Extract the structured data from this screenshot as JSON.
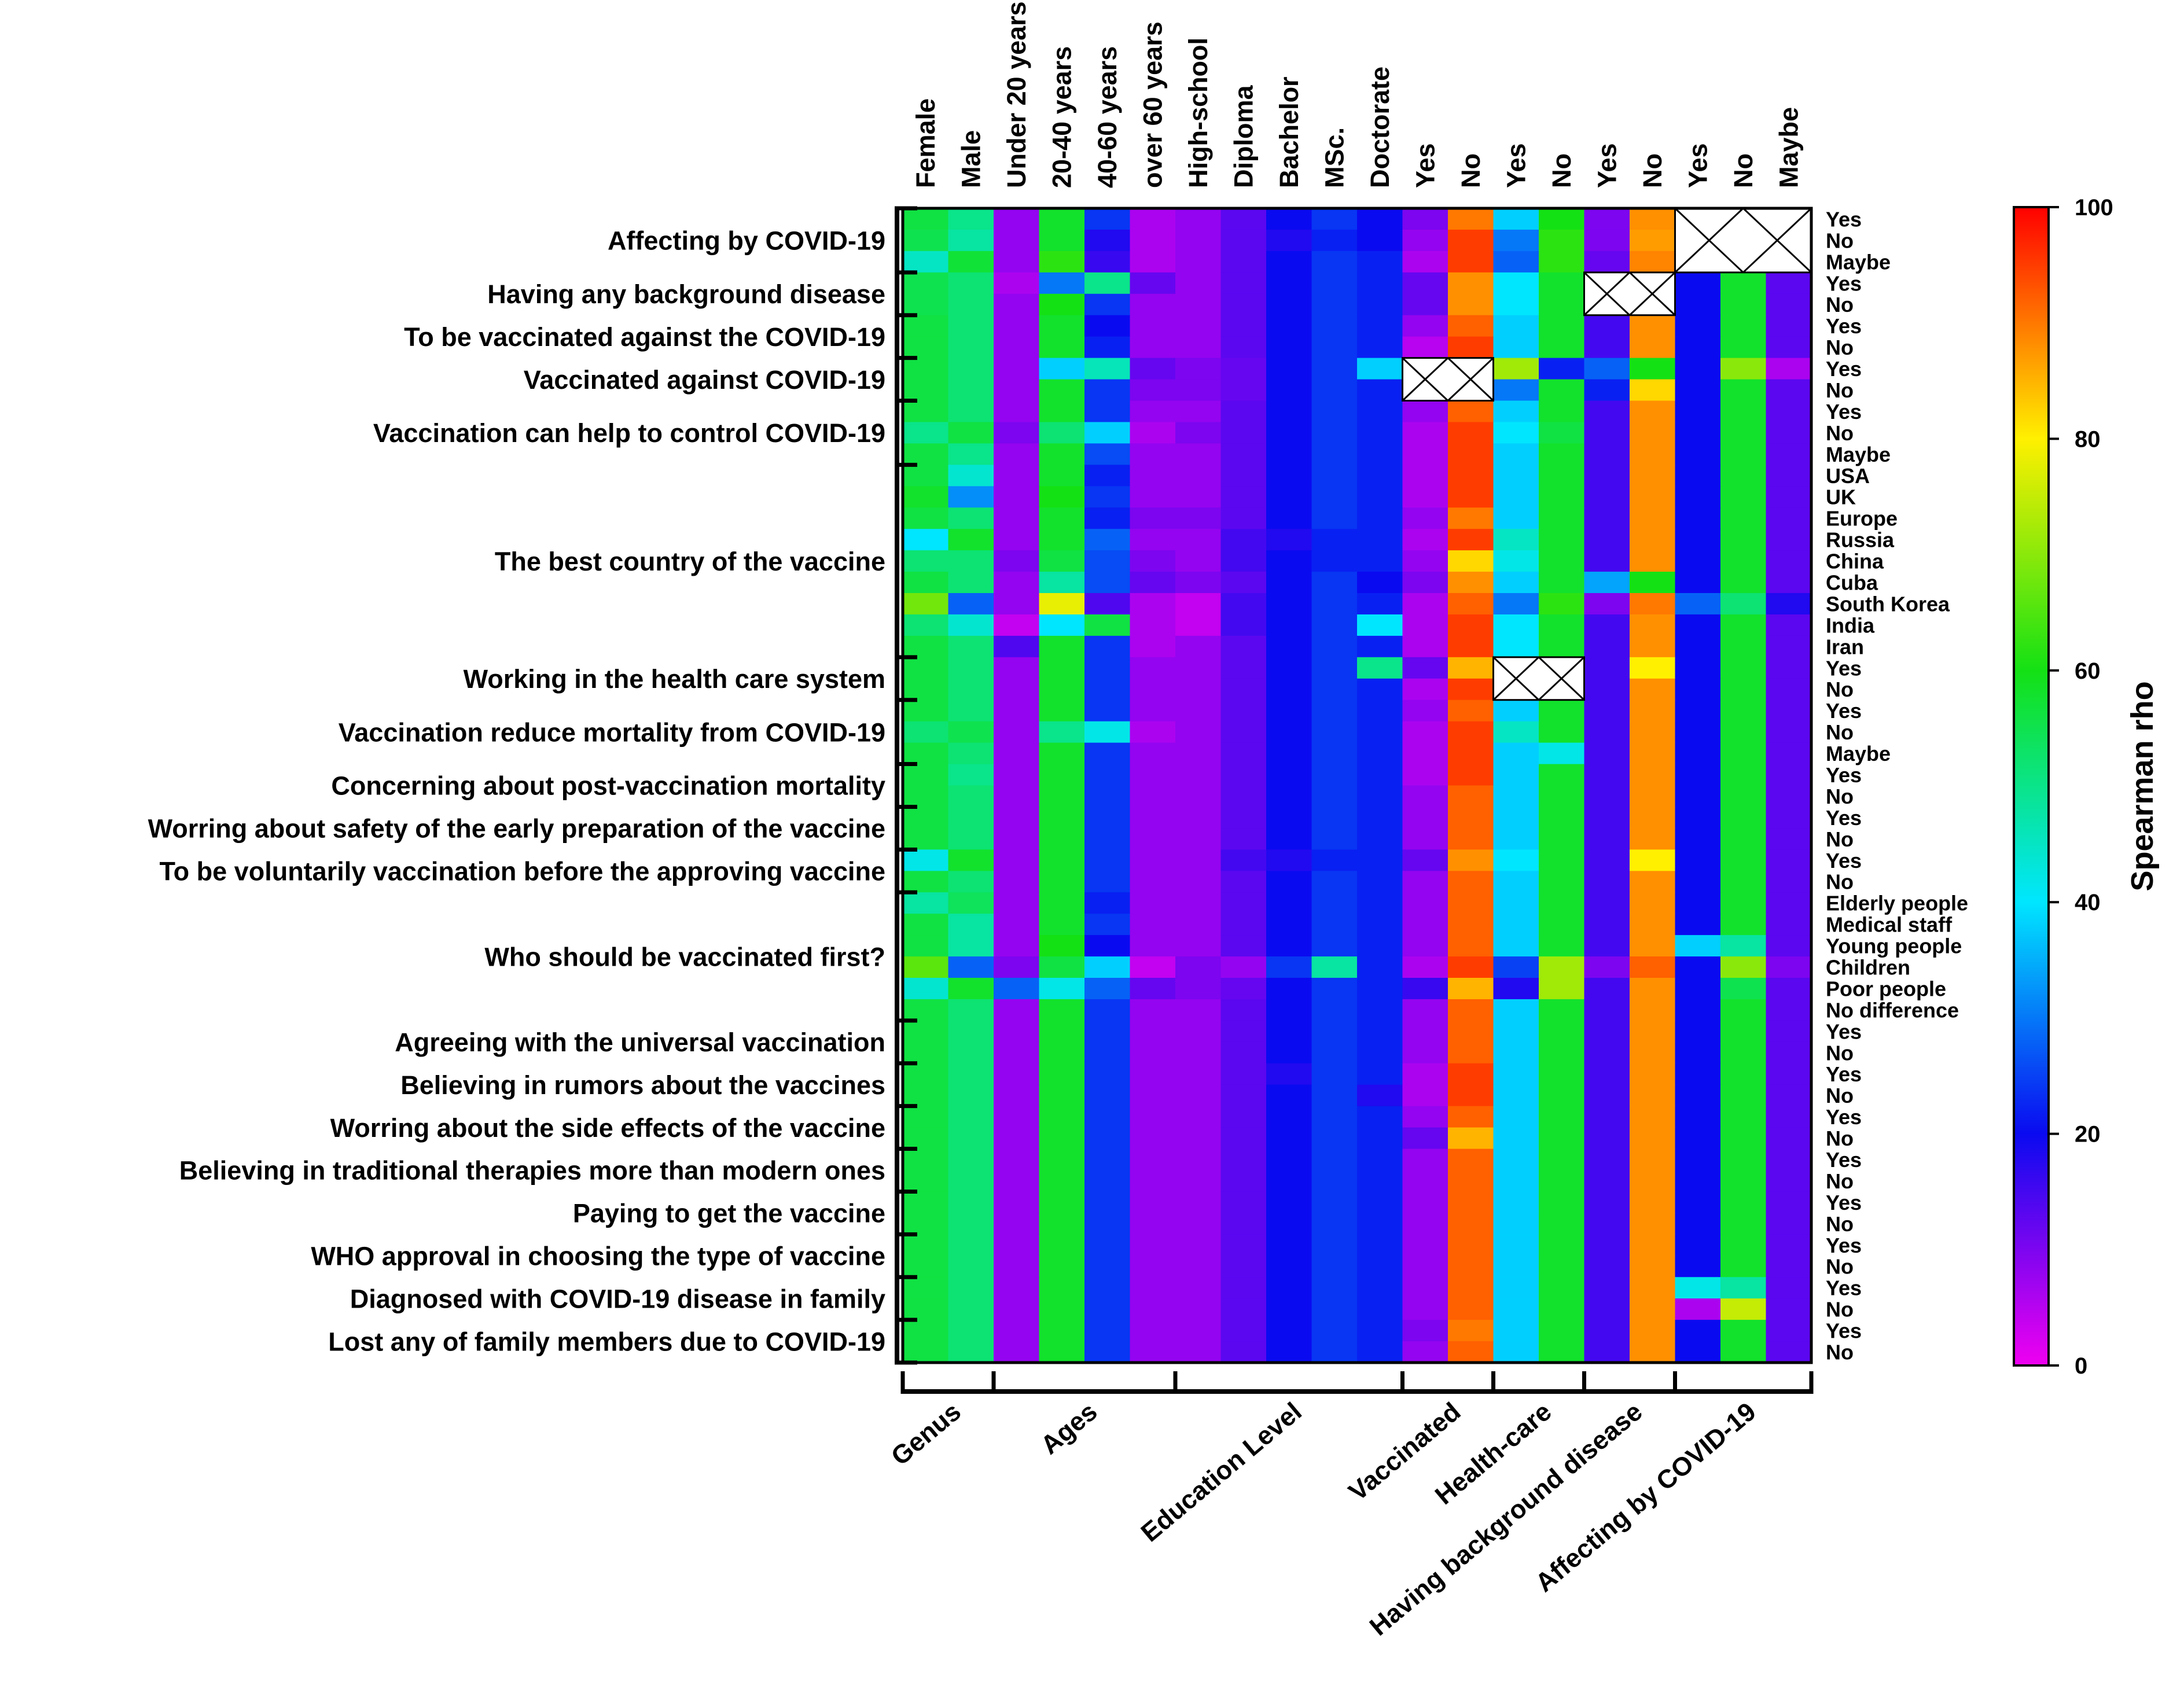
{
  "chart_data": {
    "type": "heatmap",
    "title": "",
    "colorbar": {
      "label": "Spearman rho",
      "min": 0,
      "max": 100,
      "ticks": [
        "0",
        "20",
        "40",
        "60",
        "80",
        "100"
      ]
    },
    "columns": [
      "Female",
      "Male",
      "Under 20 years",
      "20-40 years",
      "40-60 years",
      "over 60 years",
      "High-school",
      "Diploma",
      "Bachelor",
      "MSc.",
      "Doctorate",
      "Yes",
      "No",
      "Yes",
      "No",
      "Yes",
      "No",
      "Yes",
      "No",
      "Maybe"
    ],
    "column_groups": [
      {
        "label": "Genus",
        "start": 0,
        "end": 1
      },
      {
        "label": "Ages",
        "start": 2,
        "end": 5
      },
      {
        "label": "Education Level",
        "start": 6,
        "end": 10
      },
      {
        "label": "Vaccinated",
        "start": 11,
        "end": 12
      },
      {
        "label": "Health-care",
        "start": 13,
        "end": 14
      },
      {
        "label": "Having background disease",
        "start": 15,
        "end": 16
      },
      {
        "label": "Affecting by COVID-19",
        "start": 17,
        "end": 19
      }
    ],
    "rows": [
      "Yes",
      "No",
      "Maybe",
      "Yes",
      "No",
      "Yes",
      "No",
      "Yes",
      "No",
      "Yes",
      "No",
      "Maybe",
      "USA",
      "UK",
      "Europe",
      "Russia",
      "China",
      "Cuba",
      "South Korea",
      "India",
      "Iran",
      "Yes",
      "No",
      "Yes",
      "No",
      "Maybe",
      "Yes",
      "No",
      "Yes",
      "No",
      "Yes",
      "No",
      "Elderly people",
      "Medical staff",
      "Young people",
      "Children",
      "Poor people",
      "No difference",
      "Yes",
      "No",
      "Yes",
      "No",
      "Yes",
      "No",
      "Yes",
      "No",
      "Yes",
      "No",
      "Yes",
      "No",
      "Yes",
      "No",
      "Yes",
      "No"
    ],
    "row_groups": [
      {
        "label": "Affecting by COVID-19",
        "start": 0,
        "end": 2
      },
      {
        "label": "Having any background disease",
        "start": 3,
        "end": 4
      },
      {
        "label": "To be vaccinated against the COVID-19",
        "start": 5,
        "end": 6
      },
      {
        "label": "Vaccinated against COVID-19",
        "start": 7,
        "end": 8
      },
      {
        "label": "Vaccination can help to control COVID-19",
        "start": 9,
        "end": 11
      },
      {
        "label": "The best country of the vaccine",
        "start": 12,
        "end": 20
      },
      {
        "label": "Working in the health care system",
        "start": 21,
        "end": 22
      },
      {
        "label": "Vaccination reduce mortality from COVID-19",
        "start": 23,
        "end": 25
      },
      {
        "label": "Concerning about post-vaccination mortality",
        "start": 26,
        "end": 27
      },
      {
        "label": "Worring about safety of the early preparation of the vaccine",
        "start": 28,
        "end": 29
      },
      {
        "label": "To be voluntarily vaccination before the approving vaccine",
        "start": 30,
        "end": 31
      },
      {
        "label": "Who should be vaccinated first?",
        "start": 32,
        "end": 37
      },
      {
        "label": "Agreeing with the universal vaccination",
        "start": 38,
        "end": 39
      },
      {
        "label": "Believing in rumors about the vaccines",
        "start": 40,
        "end": 41
      },
      {
        "label": "Worring about the side effects of the vaccine",
        "start": 42,
        "end": 43
      },
      {
        "label": "Believing in traditional therapies more than modern ones",
        "start": 44,
        "end": 45
      },
      {
        "label": "Paying to get the vaccine",
        "start": 46,
        "end": 47
      },
      {
        "label": "WHO approval in choosing the type of vaccine",
        "start": 48,
        "end": 49
      },
      {
        "label": "Diagnosed with COVID-19 disease in family",
        "start": 50,
        "end": 51
      },
      {
        "label": "Lost any of family members due to COVID-19",
        "start": 52,
        "end": 53
      }
    ],
    "missing_blocks": [
      {
        "row_start": 0,
        "row_end": 2,
        "col_start": 17,
        "col_end": 19
      },
      {
        "row_start": 3,
        "row_end": 4,
        "col_start": 15,
        "col_end": 16
      },
      {
        "row_start": 7,
        "row_end": 8,
        "col_start": 11,
        "col_end": 12
      },
      {
        "row_start": 21,
        "row_end": 22,
        "col_start": 13,
        "col_end": 14
      }
    ],
    "values": [
      [
        56,
        50,
        8,
        58,
        24,
        6,
        8,
        13,
        20,
        24,
        20,
        10,
        90,
        38,
        60,
        10,
        88,
        null,
        null,
        null
      ],
      [
        55,
        48,
        8,
        58,
        18,
        6,
        8,
        13,
        18,
        22,
        20,
        8,
        95,
        30,
        62,
        10,
        87,
        null,
        null,
        null
      ],
      [
        45,
        57,
        8,
        62,
        16,
        6,
        8,
        13,
        20,
        24,
        22,
        6,
        95,
        28,
        62,
        12,
        89,
        null,
        null,
        null
      ],
      [
        55,
        52,
        6,
        30,
        50,
        12,
        8,
        13,
        20,
        24,
        22,
        12,
        88,
        40,
        58,
        null,
        null,
        20,
        58,
        13
      ],
      [
        55,
        52,
        8,
        60,
        24,
        8,
        8,
        13,
        20,
        24,
        22,
        12,
        88,
        40,
        58,
        null,
        null,
        20,
        58,
        13
      ],
      [
        56,
        52,
        8,
        58,
        20,
        8,
        8,
        13,
        20,
        24,
        22,
        8,
        92,
        38,
        58,
        15,
        88,
        20,
        58,
        13
      ],
      [
        56,
        52,
        8,
        58,
        22,
        8,
        8,
        13,
        20,
        24,
        22,
        5,
        95,
        38,
        58,
        15,
        88,
        20,
        58,
        13
      ],
      [
        56,
        52,
        8,
        38,
        46,
        12,
        10,
        12,
        20,
        24,
        38,
        null,
        null,
        72,
        22,
        28,
        60,
        20,
        70,
        6
      ],
      [
        56,
        52,
        8,
        58,
        24,
        10,
        10,
        12,
        20,
        24,
        22,
        null,
        null,
        30,
        58,
        22,
        82,
        20,
        58,
        13
      ],
      [
        56,
        52,
        8,
        58,
        24,
        8,
        8,
        13,
        20,
        24,
        22,
        8,
        92,
        38,
        58,
        15,
        88,
        20,
        58,
        13
      ],
      [
        50,
        56,
        10,
        52,
        38,
        6,
        10,
        13,
        20,
        24,
        22,
        6,
        95,
        40,
        56,
        15,
        88,
        20,
        58,
        13
      ],
      [
        56,
        50,
        8,
        58,
        26,
        8,
        8,
        13,
        20,
        24,
        22,
        6,
        95,
        38,
        58,
        15,
        88,
        20,
        58,
        13
      ],
      [
        56,
        44,
        8,
        58,
        22,
        8,
        8,
        13,
        20,
        24,
        22,
        6,
        95,
        38,
        58,
        15,
        88,
        20,
        58,
        13
      ],
      [
        58,
        32,
        8,
        60,
        24,
        8,
        8,
        13,
        20,
        24,
        22,
        6,
        95,
        38,
        58,
        15,
        88,
        20,
        58,
        13
      ],
      [
        56,
        52,
        8,
        58,
        22,
        10,
        10,
        13,
        20,
        24,
        22,
        8,
        90,
        38,
        58,
        15,
        88,
        20,
        58,
        13
      ],
      [
        40,
        58,
        8,
        58,
        28,
        8,
        8,
        15,
        18,
        22,
        22,
        6,
        95,
        45,
        58,
        15,
        88,
        20,
        58,
        13
      ],
      [
        52,
        52,
        10,
        56,
        26,
        10,
        8,
        15,
        20,
        22,
        22,
        8,
        82,
        42,
        58,
        15,
        88,
        20,
        58,
        13
      ],
      [
        56,
        52,
        8,
        48,
        26,
        12,
        10,
        13,
        20,
        24,
        20,
        10,
        88,
        38,
        58,
        34,
        60,
        20,
        58,
        13
      ],
      [
        68,
        28,
        8,
        78,
        14,
        6,
        4,
        15,
        20,
        24,
        22,
        6,
        92,
        30,
        62,
        10,
        90,
        28,
        52,
        18
      ],
      [
        52,
        44,
        4,
        40,
        56,
        6,
        4,
        15,
        20,
        24,
        40,
        6,
        95,
        40,
        58,
        15,
        88,
        20,
        58,
        13
      ],
      [
        56,
        52,
        14,
        58,
        24,
        6,
        8,
        13,
        20,
        24,
        22,
        6,
        95,
        40,
        58,
        15,
        88,
        20,
        58,
        13
      ],
      [
        56,
        52,
        8,
        58,
        24,
        8,
        8,
        13,
        20,
        24,
        50,
        12,
        85,
        null,
        null,
        15,
        80,
        20,
        58,
        13
      ],
      [
        56,
        52,
        8,
        58,
        24,
        8,
        8,
        13,
        20,
        24,
        22,
        6,
        95,
        null,
        null,
        15,
        88,
        20,
        58,
        13
      ],
      [
        56,
        52,
        8,
        58,
        24,
        8,
        8,
        13,
        20,
        24,
        22,
        8,
        92,
        38,
        58,
        15,
        88,
        20,
        58,
        13
      ],
      [
        52,
        55,
        8,
        50,
        42,
        6,
        8,
        13,
        20,
        24,
        22,
        6,
        95,
        45,
        58,
        15,
        88,
        20,
        58,
        13
      ],
      [
        56,
        52,
        8,
        58,
        24,
        8,
        8,
        13,
        20,
        24,
        22,
        6,
        95,
        38,
        42,
        15,
        88,
        20,
        58,
        13
      ],
      [
        56,
        50,
        8,
        58,
        24,
        8,
        8,
        13,
        20,
        24,
        22,
        6,
        95,
        38,
        58,
        15,
        88,
        20,
        58,
        13
      ],
      [
        56,
        52,
        8,
        58,
        24,
        8,
        8,
        13,
        20,
        24,
        22,
        8,
        92,
        38,
        58,
        15,
        88,
        20,
        58,
        13
      ],
      [
        56,
        52,
        8,
        58,
        24,
        8,
        8,
        13,
        20,
        24,
        22,
        8,
        92,
        38,
        58,
        15,
        88,
        20,
        58,
        13
      ],
      [
        56,
        52,
        8,
        58,
        24,
        8,
        8,
        13,
        20,
        24,
        22,
        8,
        92,
        38,
        58,
        15,
        88,
        20,
        58,
        13
      ],
      [
        42,
        58,
        8,
        58,
        24,
        8,
        8,
        15,
        18,
        22,
        22,
        12,
        88,
        40,
        58,
        15,
        80,
        20,
        58,
        13
      ],
      [
        56,
        52,
        8,
        58,
        24,
        8,
        8,
        13,
        20,
        24,
        22,
        8,
        92,
        38,
        58,
        15,
        88,
        20,
        58,
        13
      ],
      [
        48,
        54,
        8,
        58,
        22,
        8,
        8,
        13,
        20,
        24,
        22,
        8,
        92,
        38,
        58,
        15,
        88,
        20,
        58,
        13
      ],
      [
        56,
        48,
        8,
        58,
        24,
        8,
        8,
        13,
        20,
        24,
        22,
        8,
        92,
        38,
        58,
        15,
        88,
        20,
        58,
        13
      ],
      [
        56,
        48,
        8,
        60,
        20,
        8,
        8,
        13,
        20,
        24,
        22,
        8,
        92,
        38,
        58,
        15,
        88,
        38,
        48,
        13
      ],
      [
        66,
        28,
        10,
        56,
        38,
        4,
        10,
        8,
        24,
        48,
        22,
        6,
        95,
        25,
        72,
        10,
        92,
        20,
        70,
        10
      ],
      [
        44,
        58,
        28,
        42,
        28,
        12,
        10,
        12,
        20,
        24,
        22,
        16,
        85,
        18,
        72,
        15,
        88,
        20,
        55,
        13
      ],
      [
        56,
        52,
        8,
        58,
        24,
        8,
        8,
        13,
        20,
        24,
        22,
        8,
        92,
        38,
        58,
        15,
        88,
        20,
        58,
        13
      ],
      [
        56,
        52,
        8,
        58,
        24,
        8,
        8,
        13,
        20,
        24,
        22,
        8,
        92,
        38,
        58,
        15,
        88,
        20,
        58,
        13
      ],
      [
        56,
        52,
        8,
        58,
        24,
        8,
        8,
        13,
        20,
        24,
        22,
        8,
        92,
        38,
        58,
        15,
        88,
        20,
        58,
        13
      ],
      [
        56,
        52,
        8,
        58,
        24,
        8,
        8,
        13,
        18,
        24,
        22,
        6,
        95,
        38,
        58,
        15,
        88,
        20,
        58,
        13
      ],
      [
        56,
        52,
        8,
        58,
        24,
        8,
        8,
        13,
        20,
        24,
        18,
        6,
        95,
        38,
        58,
        15,
        88,
        20,
        58,
        13
      ],
      [
        56,
        52,
        8,
        58,
        24,
        8,
        8,
        13,
        20,
        24,
        22,
        8,
        92,
        38,
        58,
        15,
        88,
        20,
        58,
        13
      ],
      [
        56,
        52,
        8,
        58,
        24,
        8,
        8,
        13,
        20,
        24,
        22,
        12,
        85,
        38,
        58,
        15,
        88,
        20,
        58,
        13
      ],
      [
        56,
        52,
        8,
        58,
        24,
        8,
        8,
        13,
        20,
        24,
        22,
        8,
        92,
        38,
        58,
        15,
        88,
        20,
        58,
        13
      ],
      [
        56,
        52,
        8,
        58,
        24,
        8,
        8,
        13,
        20,
        24,
        22,
        8,
        92,
        38,
        58,
        15,
        88,
        20,
        58,
        13
      ],
      [
        56,
        52,
        8,
        58,
        24,
        8,
        8,
        13,
        20,
        24,
        22,
        8,
        92,
        38,
        58,
        15,
        88,
        20,
        58,
        13
      ],
      [
        56,
        52,
        8,
        58,
        24,
        8,
        8,
        13,
        20,
        24,
        22,
        8,
        92,
        38,
        58,
        15,
        88,
        20,
        58,
        13
      ],
      [
        56,
        52,
        8,
        58,
        24,
        8,
        8,
        13,
        20,
        24,
        22,
        8,
        92,
        38,
        58,
        15,
        88,
        20,
        58,
        13
      ],
      [
        56,
        52,
        8,
        58,
        24,
        8,
        8,
        13,
        20,
        24,
        22,
        8,
        92,
        38,
        58,
        15,
        88,
        20,
        58,
        13
      ],
      [
        56,
        52,
        8,
        58,
        24,
        8,
        8,
        13,
        20,
        24,
        22,
        8,
        92,
        38,
        58,
        15,
        88,
        42,
        48,
        13
      ],
      [
        56,
        52,
        8,
        58,
        24,
        8,
        8,
        13,
        20,
        24,
        22,
        8,
        92,
        38,
        58,
        15,
        88,
        6,
        75,
        13
      ],
      [
        56,
        52,
        8,
        58,
        24,
        8,
        8,
        13,
        20,
        24,
        22,
        10,
        90,
        38,
        58,
        15,
        88,
        20,
        58,
        13
      ],
      [
        56,
        52,
        8,
        58,
        24,
        8,
        8,
        13,
        20,
        24,
        22,
        8,
        92,
        38,
        58,
        15,
        88,
        20,
        58,
        13
      ]
    ]
  }
}
